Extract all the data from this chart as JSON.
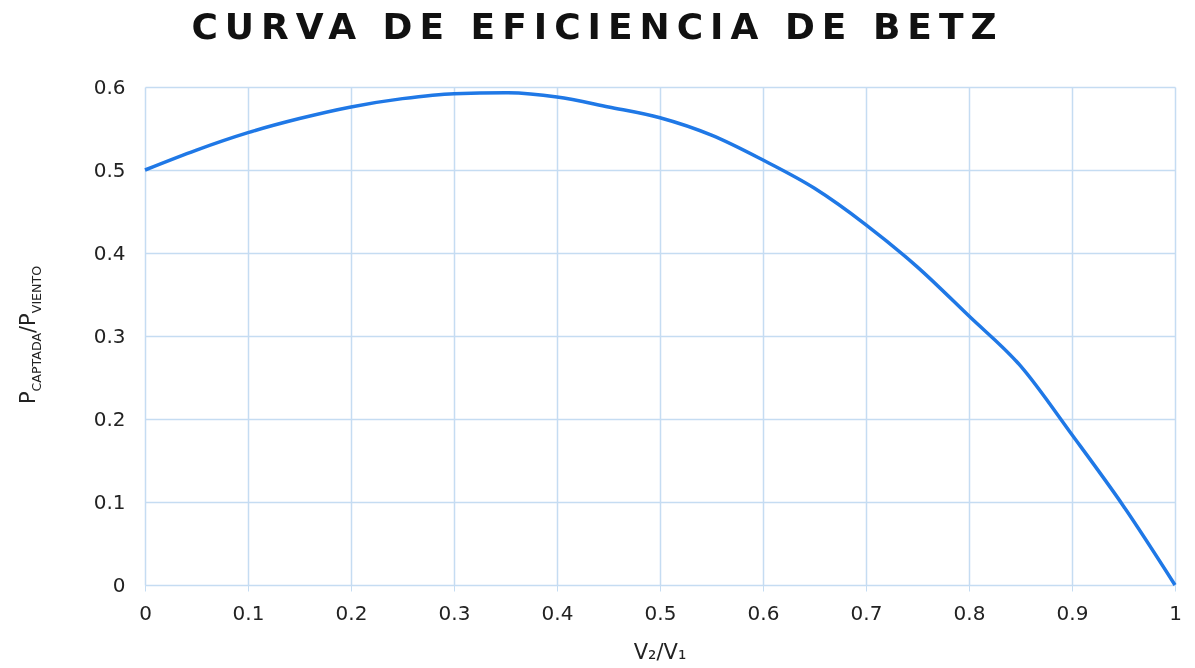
{
  "chart_data": {
    "type": "line",
    "title": "CURVA DE EFICIENCIA DE BETZ",
    "xlabel": "V₂/V₁",
    "ylabel": "P$_{CAPTADA}$/P$_{VIENTO}$",
    "x": [
      0,
      0.05,
      0.1,
      0.15,
      0.2,
      0.25,
      0.3,
      0.35,
      0.4,
      0.45,
      0.5,
      0.55,
      0.6,
      0.65,
      0.7,
      0.75,
      0.8,
      0.85,
      0.9,
      0.95,
      1
    ],
    "series": [
      {
        "color": "#1f78e6",
        "values": [
          0.5,
          0.524,
          0.545,
          0.562,
          0.576,
          0.586,
          0.592,
          0.593,
          0.588,
          0.576,
          0.563,
          0.542,
          0.512,
          0.478,
          0.434,
          0.383,
          0.324,
          0.264,
          0.181,
          0.095,
          0
        ]
      }
    ],
    "xlim": [
      0,
      1
    ],
    "xticks": [
      0,
      0.1,
      0.2,
      0.3,
      0.4,
      0.5,
      0.6,
      0.7,
      0.8,
      0.9,
      1
    ],
    "ylim": [
      0,
      0.6
    ],
    "yticks": [
      0,
      0.1,
      0.2,
      0.3,
      0.4,
      0.5,
      0.6
    ],
    "grid": true,
    "marker": "none",
    "line_style": "solid"
  }
}
